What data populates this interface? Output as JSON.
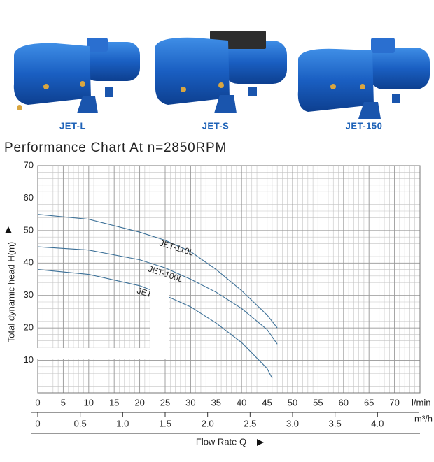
{
  "chart_data": {
    "type": "line",
    "product_labels": [
      "JET-L",
      "JET-S",
      "JET-150"
    ],
    "title": "Performance Chart At n=2850RPM",
    "y_label": "Total dynamic head H(m)",
    "x_label": "Flow Rate Q",
    "x_unit": "l/min",
    "x2_unit": "m³/h",
    "xlim": [
      0,
      75
    ],
    "xticks": [
      0,
      5,
      10,
      15,
      20,
      25,
      30,
      35,
      40,
      45,
      50,
      55,
      60,
      65,
      70
    ],
    "x2lim": [
      0,
      4.5
    ],
    "x2ticks": [
      0,
      0.5,
      {
        "value": 1,
        "label": "1.0"
      },
      1.5,
      {
        "value": 2,
        "label": "2.0"
      },
      2.5,
      {
        "value": 3,
        "label": "3.0"
      },
      3.5,
      {
        "value": 4,
        "label": "4.0"
      }
    ],
    "ylim": [
      0,
      70
    ],
    "yticks": [
      10,
      20,
      30,
      40,
      50,
      60,
      70
    ],
    "grid": true,
    "series": [
      {
        "name": "JET-110L",
        "color": "#3c7097",
        "x": [
          0,
          10,
          20,
          25,
          30,
          35,
          40,
          45,
          47
        ],
        "values": [
          55,
          53.5,
          49.5,
          47,
          43.5,
          38,
          31.5,
          24,
          20
        ]
      },
      {
        "name": "JET-100L",
        "color": "#3c7097",
        "x": [
          0,
          10,
          20,
          25,
          30,
          35,
          40,
          45,
          47
        ],
        "values": [
          45,
          44,
          41,
          38.5,
          35,
          31,
          26,
          19.5,
          15
        ]
      },
      {
        "name": "JET-",
        "color": "#3c7097",
        "x": [
          0,
          10,
          20,
          25,
          30,
          35,
          40,
          45,
          46
        ],
        "values": [
          38,
          36.5,
          33,
          30,
          26.5,
          21.5,
          15.5,
          7.5,
          4.5
        ]
      }
    ]
  }
}
